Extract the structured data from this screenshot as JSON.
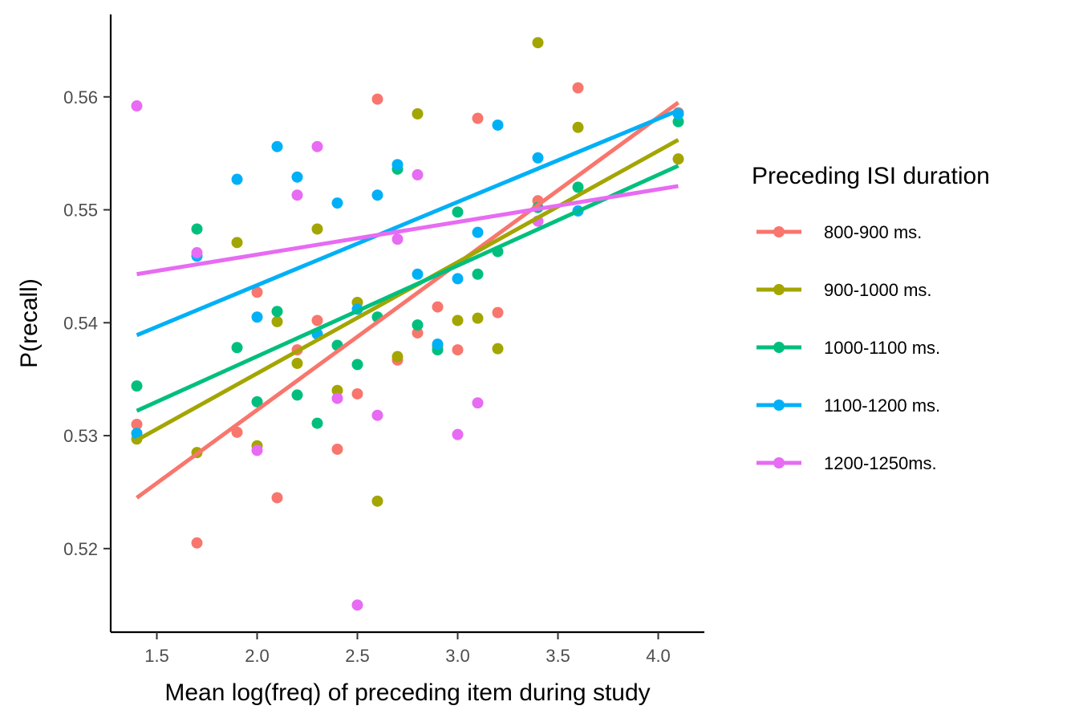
{
  "chart_data": {
    "type": "scatter",
    "xlabel": "Mean log(freq) of preceding item during study",
    "ylabel": "P(recall)",
    "xlim": [
      1.27,
      4.23
    ],
    "ylim": [
      0.5126,
      0.5673
    ],
    "x_ticks": [
      1.5,
      2.0,
      2.5,
      3.0,
      3.5,
      4.0
    ],
    "x_tick_labels": [
      "1.5",
      "2.0",
      "2.5",
      "3.0",
      "3.5",
      "4.0"
    ],
    "y_ticks": [
      0.52,
      0.53,
      0.54,
      0.55,
      0.56
    ],
    "y_tick_labels": [
      "0.52",
      "0.53",
      "0.54",
      "0.55",
      "0.56"
    ],
    "grid": false,
    "legend": {
      "title": "Preceding ISI duration",
      "position": "right"
    },
    "series": [
      {
        "name": "800-900 ms.",
        "color": "#F8766D",
        "x": [
          1.4,
          1.7,
          1.9,
          2.0,
          2.1,
          2.2,
          2.3,
          2.4,
          2.5,
          2.6,
          2.7,
          2.8,
          2.9,
          3.0,
          3.1,
          3.2,
          3.4,
          3.6,
          4.1
        ],
        "y": [
          0.531,
          0.5205,
          0.5303,
          0.5427,
          0.5245,
          0.5376,
          0.5402,
          0.5288,
          0.5337,
          0.5598,
          0.5367,
          0.5391,
          0.5414,
          0.5376,
          0.5581,
          0.5409,
          0.5508,
          0.5608,
          0.5586
        ],
        "fit": {
          "x": [
            1.4,
            4.1
          ],
          "y": [
            0.5245,
            0.5595
          ]
        }
      },
      {
        "name": "900-1000 ms.",
        "color": "#A3A500",
        "x": [
          1.4,
          1.7,
          1.9,
          2.0,
          2.1,
          2.2,
          2.3,
          2.4,
          2.5,
          2.6,
          2.7,
          2.8,
          2.9,
          3.0,
          3.1,
          3.2,
          3.4,
          3.6,
          4.1
        ],
        "y": [
          0.5297,
          0.5285,
          0.5471,
          0.5291,
          0.5401,
          0.5364,
          0.5483,
          0.534,
          0.5418,
          0.5242,
          0.537,
          0.5585,
          0.5379,
          0.5402,
          0.5404,
          0.5377,
          0.5648,
          0.5573,
          0.5545
        ],
        "fit": {
          "x": [
            1.4,
            4.1
          ],
          "y": [
            0.5296,
            0.5562
          ]
        }
      },
      {
        "name": "1000-1100 ms.",
        "color": "#00BF7D",
        "x": [
          1.4,
          1.7,
          1.9,
          2.0,
          2.1,
          2.2,
          2.3,
          2.4,
          2.5,
          2.6,
          2.7,
          2.8,
          2.9,
          3.0,
          3.1,
          3.2,
          3.4,
          3.6,
          4.1
        ],
        "y": [
          0.5344,
          0.5483,
          0.5378,
          0.533,
          0.541,
          0.5336,
          0.5311,
          0.538,
          0.5363,
          0.5405,
          0.5536,
          0.5398,
          0.5376,
          0.5498,
          0.5443,
          0.5463,
          0.5502,
          0.552,
          0.5578
        ],
        "fit": {
          "x": [
            1.4,
            4.1
          ],
          "y": [
            0.5322,
            0.5539
          ]
        }
      },
      {
        "name": "1100-1200 ms.",
        "color": "#00B0F6",
        "x": [
          1.4,
          1.7,
          1.9,
          2.0,
          2.1,
          2.2,
          2.3,
          2.4,
          2.5,
          2.6,
          2.7,
          2.8,
          2.9,
          3.0,
          3.1,
          3.2,
          3.4,
          3.6,
          4.1
        ],
        "y": [
          0.5302,
          0.5459,
          0.5527,
          0.5405,
          0.5556,
          0.5529,
          0.539,
          0.5506,
          0.5412,
          0.5513,
          0.554,
          0.5443,
          0.5381,
          0.5439,
          0.548,
          0.5575,
          0.5546,
          0.5499,
          0.5585
        ],
        "fit": {
          "x": [
            1.4,
            4.1
          ],
          "y": [
            0.5389,
            0.5588
          ]
        }
      },
      {
        "name": "1200-1250ms.",
        "color": "#E76BF3",
        "x": [
          1.4,
          1.7,
          2.0,
          2.2,
          2.3,
          2.4,
          2.5,
          2.6,
          2.7,
          2.8,
          3.0,
          3.1,
          3.4
        ],
        "y": [
          0.5592,
          0.5462,
          0.5287,
          0.5513,
          0.5556,
          0.5333,
          0.515,
          0.5318,
          0.5474,
          0.5531,
          0.5301,
          0.5329,
          0.549
        ],
        "fit": {
          "x": [
            1.4,
            4.1
          ],
          "y": [
            0.5443,
            0.5521
          ]
        }
      }
    ]
  }
}
